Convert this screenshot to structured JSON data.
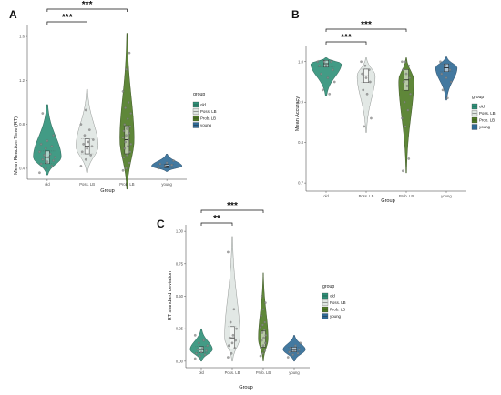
{
  "chart_data": [
    {
      "panel_label": "A",
      "type": "violin",
      "categories": [
        "old",
        "Poss. LB",
        "Prob. LB",
        "young"
      ],
      "xlabel": "Group",
      "ylabel": "Mean Reaction Time (RT)",
      "ylim": [
        0.3,
        1.7
      ],
      "yticks": [
        "0.4",
        "0.8",
        "1.2",
        "1.6"
      ],
      "ytick_values": [
        0.4,
        0.8,
        1.2,
        1.6
      ],
      "median": [
        0.5,
        0.6,
        0.66,
        0.42
      ],
      "range": [
        [
          0.34,
          0.98
        ],
        [
          0.36,
          1.12
        ],
        [
          0.21,
          1.63
        ],
        [
          0.37,
          0.53
        ]
      ],
      "widths": [
        0.78,
        0.62,
        0.4,
        0.85
      ],
      "points": [
        [
          0.36,
          0.4,
          0.42,
          0.44,
          0.46,
          0.47,
          0.48,
          0.5,
          0.5,
          0.52,
          0.53,
          0.55,
          0.58,
          0.6,
          0.62,
          0.65,
          0.7,
          0.9
        ],
        [
          0.42,
          0.48,
          0.52,
          0.55,
          0.58,
          0.6,
          0.62,
          0.64,
          0.66,
          0.7,
          0.75,
          0.8,
          0.93
        ],
        [
          0.38,
          0.4,
          0.45,
          0.5,
          0.52,
          0.55,
          0.58,
          0.6,
          0.62,
          0.64,
          0.66,
          0.68,
          0.7,
          0.72,
          0.74,
          0.76,
          0.78,
          0.8,
          0.85,
          0.9,
          0.95,
          1.0,
          1.1,
          1.3,
          1.45
        ],
        [
          0.4,
          0.42,
          0.43,
          0.44,
          0.45,
          0.47
        ]
      ],
      "significance": [
        {
          "from": "old",
          "to": "Poss. LB",
          "label": "***"
        },
        {
          "from": "old",
          "to": "Prob. LB",
          "label": "***"
        }
      ]
    },
    {
      "panel_label": "B",
      "type": "violin",
      "categories": [
        "old",
        "Poss. LB",
        "Prob. LB",
        "young"
      ],
      "xlabel": "Group",
      "ylabel": "Mean Accuracy",
      "ylim": [
        0.68,
        1.04
      ],
      "yticks": [
        "0.7",
        "0.8",
        "0.9",
        "1.0"
      ],
      "ytick_values": [
        0.7,
        0.8,
        0.9,
        1.0
      ],
      "median": [
        0.995,
        0.965,
        0.955,
        0.985
      ],
      "range": [
        [
          0.915,
          1.01
        ],
        [
          0.825,
          1.01
        ],
        [
          0.725,
          1.01
        ],
        [
          0.905,
          1.012
        ]
      ],
      "widths": [
        0.85,
        0.5,
        0.42,
        0.6
      ],
      "points": [
        [
          1.0,
          1.0,
          1.0,
          0.99,
          0.99,
          0.98,
          0.97,
          0.96,
          0.95,
          0.93,
          0.92
        ],
        [
          1.0,
          0.99,
          0.98,
          0.97,
          0.96,
          0.95,
          0.93,
          0.92,
          0.86,
          0.84
        ],
        [
          1.0,
          1.0,
          0.99,
          0.98,
          0.97,
          0.96,
          0.95,
          0.94,
          0.92,
          0.9,
          0.88,
          0.86,
          0.84,
          0.76,
          0.73
        ],
        [
          1.0,
          0.99,
          0.98,
          0.97,
          0.96,
          0.95,
          0.93,
          0.91
        ]
      ],
      "significance": [
        {
          "from": "old",
          "to": "Poss. LB",
          "label": "***"
        },
        {
          "from": "old",
          "to": "Prob. LB",
          "label": "***"
        }
      ]
    },
    {
      "panel_label": "C",
      "type": "violin",
      "categories": [
        "old",
        "Poss. LB",
        "Prob. LB",
        "young"
      ],
      "xlabel": "Group",
      "ylabel": "RT standard deviation",
      "ylim": [
        -0.05,
        1.05
      ],
      "yticks": [
        "0.00",
        "0.25",
        "0.50",
        "0.75",
        "1.00"
      ],
      "ytick_values": [
        0.0,
        0.25,
        0.5,
        0.75,
        1.0
      ],
      "median": [
        0.09,
        0.18,
        0.17,
        0.09
      ],
      "range": [
        [
          0.0,
          0.25
        ],
        [
          0.0,
          0.96
        ],
        [
          0.0,
          0.68
        ],
        [
          0.0,
          0.2
        ]
      ],
      "widths": [
        0.8,
        0.55,
        0.35,
        0.8
      ],
      "points": [
        [
          0.02,
          0.04,
          0.05,
          0.06,
          0.07,
          0.08,
          0.09,
          0.1,
          0.12,
          0.14,
          0.16,
          0.2
        ],
        [
          0.03,
          0.06,
          0.1,
          0.12,
          0.14,
          0.16,
          0.18,
          0.2,
          0.25,
          0.3,
          0.4,
          0.84
        ],
        [
          0.04,
          0.06,
          0.08,
          0.1,
          0.12,
          0.14,
          0.16,
          0.18,
          0.2,
          0.22,
          0.24,
          0.26,
          0.28,
          0.3,
          0.35,
          0.4,
          0.45,
          0.5
        ],
        [
          0.03,
          0.05,
          0.06,
          0.07,
          0.08,
          0.09,
          0.1,
          0.12,
          0.14
        ]
      ],
      "significance": [
        {
          "from": "old",
          "to": "Poss. LB",
          "label": "**"
        },
        {
          "from": "old",
          "to": "Prob. LB",
          "label": "***"
        }
      ]
    }
  ],
  "legend": {
    "title": "group",
    "entries": [
      "old",
      "Poss. LB",
      "Prob. LB",
      "young"
    ]
  },
  "colors": {
    "old": "#2e9078",
    "Poss. LB": "#dfe6e2",
    "Prob. LB": "#4e7a24",
    "young": "#2f6a96",
    "point": "#888888"
  }
}
